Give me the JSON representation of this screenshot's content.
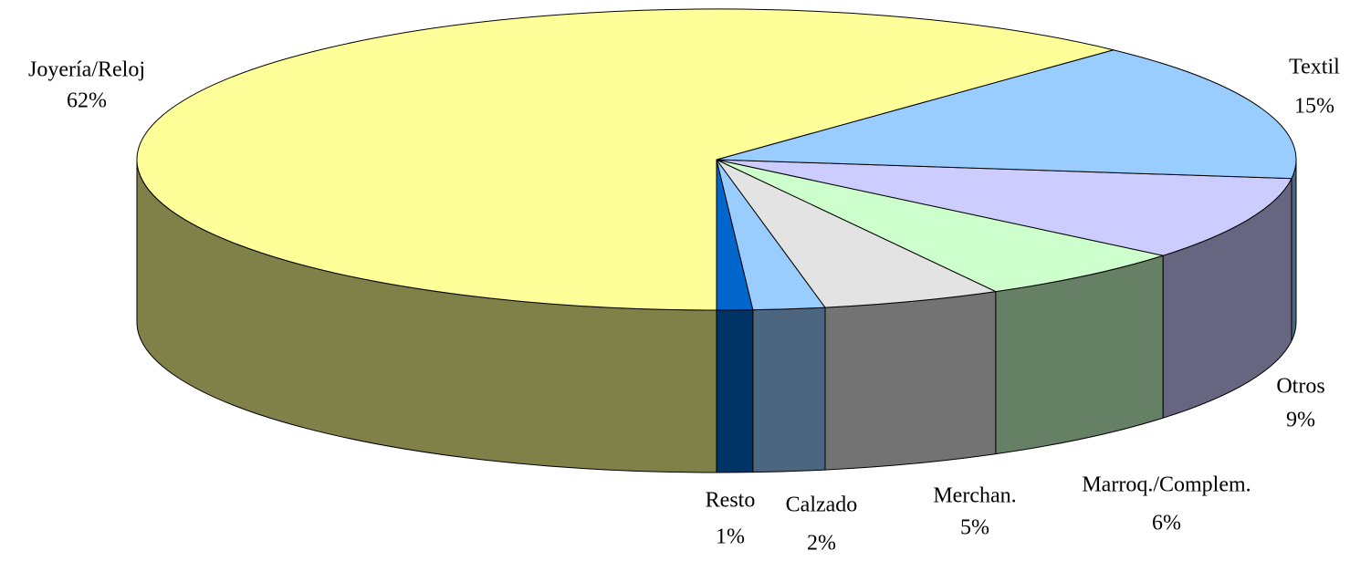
{
  "chart_data": {
    "type": "pie",
    "categories": [
      "Resto",
      "Calzado",
      "Merchan.",
      "Marroq./Complem.",
      "Otros",
      "Textil",
      "Joyería/Reloj"
    ],
    "values": [
      1,
      2,
      5,
      6,
      9,
      15,
      62
    ],
    "value_labels": [
      "1%",
      "2%",
      "5%",
      "6%",
      "9%",
      "15%",
      "62%"
    ],
    "colors": [
      "#0066CC",
      "#99CCFF",
      "#E3E3E3",
      "#CCFFCC",
      "#CCCCFF",
      "#99CCFF",
      "#FFFF99"
    ],
    "side_colors": [
      "#003366",
      "#4D6680",
      "#737373",
      "#668066",
      "#666680",
      "#4D6680",
      "#808049"
    ]
  }
}
